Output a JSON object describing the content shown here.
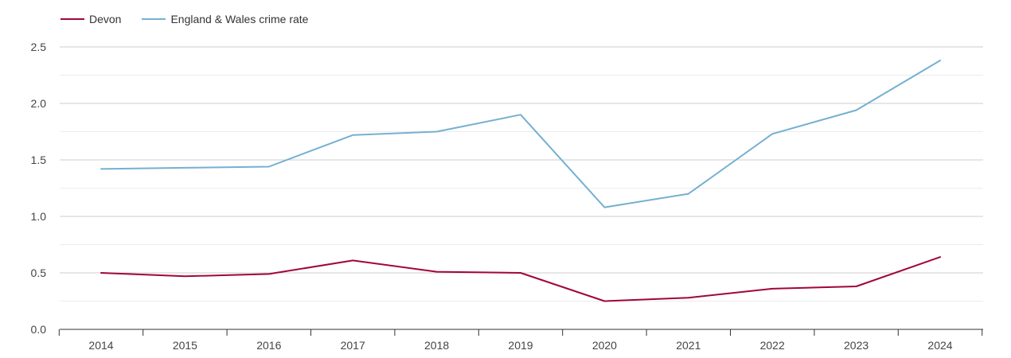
{
  "chart_data": {
    "type": "line",
    "title": "",
    "xlabel": "",
    "ylabel": "",
    "x": [
      "2014",
      "2015",
      "2016",
      "2017",
      "2018",
      "2019",
      "2020",
      "2021",
      "2022",
      "2023",
      "2024"
    ],
    "series": [
      {
        "name": "Devon",
        "color": "#a0063a",
        "values": [
          0.5,
          0.47,
          0.49,
          0.61,
          0.51,
          0.5,
          0.25,
          0.28,
          0.36,
          0.38,
          0.64
        ]
      },
      {
        "name": "England & Wales crime rate",
        "color": "#76b0d0",
        "values": [
          1.42,
          1.43,
          1.44,
          1.72,
          1.75,
          1.9,
          1.08,
          1.2,
          1.73,
          1.94,
          2.38
        ]
      }
    ],
    "ylim": [
      0,
      2.5
    ],
    "yticks": [
      "0.0",
      "0.5",
      "1.0",
      "1.5",
      "2.0",
      "2.5"
    ],
    "grid": true,
    "legend_position": "top-left"
  }
}
